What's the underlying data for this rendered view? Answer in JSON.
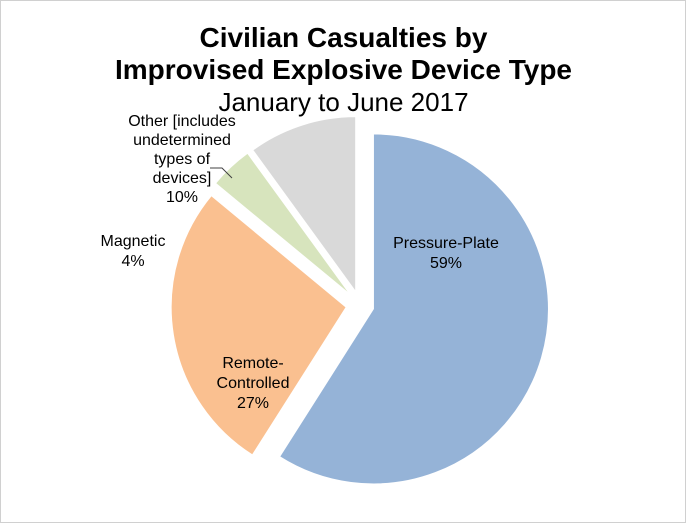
{
  "chart_data": {
    "type": "pie",
    "title": "Civilian Casualties by",
    "title_line2": "Improvised Explosive Device Type",
    "subtitle": "January to June 2017",
    "slices": [
      {
        "label_lines": [
          "Pressure-Plate"
        ],
        "value": 59,
        "pct_text": "59%",
        "color": "#95b3d7",
        "exploded": true
      },
      {
        "label_lines": [
          "Remote-",
          "Controlled"
        ],
        "value": 27,
        "pct_text": "27%",
        "color": "#fac090",
        "exploded": true
      },
      {
        "label_lines": [
          "Magnetic"
        ],
        "value": 4,
        "pct_text": "4%",
        "color": "#d7e4bd",
        "exploded": true
      },
      {
        "label_lines": [
          "Other [includes",
          "undetermined",
          "types of",
          "devices]"
        ],
        "value": 10,
        "pct_text": "10%",
        "color": "#d9d9d9",
        "exploded": true
      }
    ]
  }
}
